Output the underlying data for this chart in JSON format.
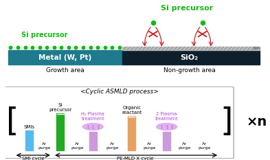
{
  "bg_color": "#ffffff",
  "top": {
    "metal_color": "#1e7a8c",
    "sio2_color": "#0d1f2d",
    "metal_label": "Metal (W, Pt)",
    "sio2_label": "SiO₂",
    "growth_label": "Growth area",
    "nongrowth_label": "Non-growth area",
    "si_precursor_left": "Si precursor",
    "si_precursor_top": "Si precursor",
    "smis_label": "SMIs",
    "green_color": "#11bb11",
    "red_color": "#cc2222"
  },
  "bot": {
    "title": "<Cyclic ASMLD process>",
    "border_color": "#aaaaaa",
    "smis_color": "#55bbee",
    "si_color": "#22aa22",
    "plasma_color": "#cc99dd",
    "organic_color": "#e8a060",
    "ellipse_color": "#ddaaee",
    "purple_text": "#aa44cc",
    "xn": "×n",
    "smi_cycle": "SMI cycle",
    "pemld_cycle": "PE-MLD X cycle"
  }
}
